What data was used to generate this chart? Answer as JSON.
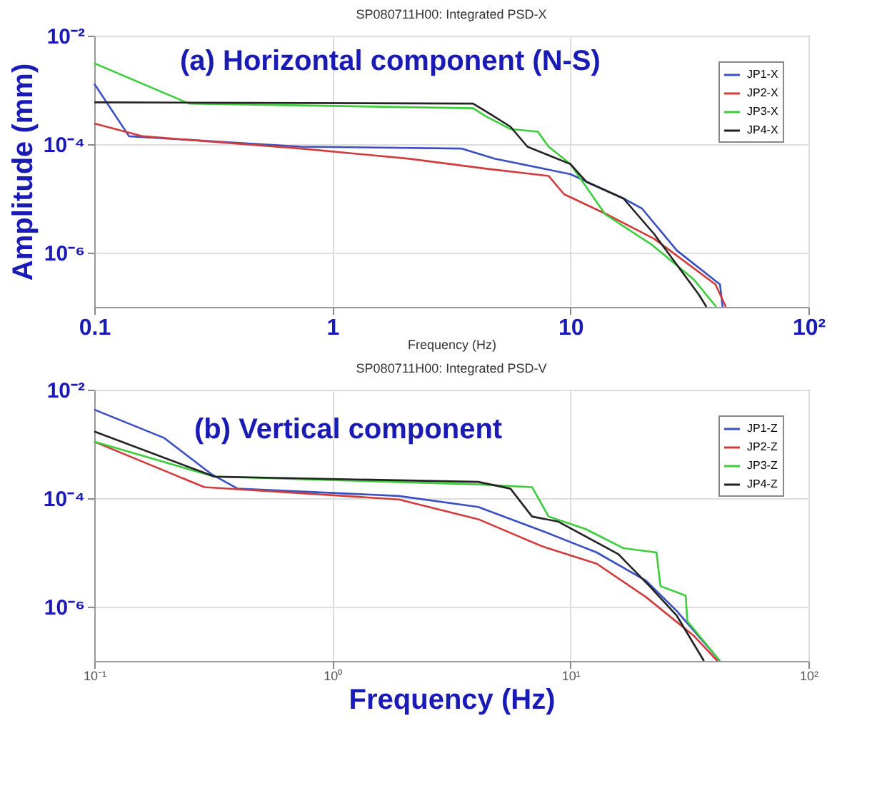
{
  "chart_data": [
    {
      "type": "line",
      "title": "SP080711H00: Integrated PSD-X",
      "xlabel": "Frequency (Hz)",
      "ylabel": "Amplitude (mm)",
      "annotations": [
        "(a) Horizontal component (N-S)"
      ],
      "log": "xy",
      "grid": true,
      "legend": "top right",
      "xlim": [
        0.1,
        100
      ],
      "ylim": [
        1e-07,
        0.01
      ],
      "xticks": [
        0.1,
        1,
        10,
        {
          "value": 100,
          "label": "10²"
        }
      ],
      "yticks": [
        {
          "value": 0.01,
          "label": "10⁻²"
        },
        {
          "value": 0.0001,
          "label": "10⁻⁴"
        },
        {
          "value": 1e-06,
          "label": "10⁻⁶"
        }
      ],
      "series": [
        {
          "name": "JP1-X",
          "color": "#3a4fc0",
          "x": [
            0.1,
            0.14,
            0.74,
            3.5,
            4.8,
            10,
            16.7,
            20,
            28,
            42.5,
            43.6
          ],
          "values": [
            0.0013,
            0.00014,
            9e-05,
            8.3e-05,
            5.4e-05,
            2.8e-05,
            1e-05,
            6.5e-06,
            1.1e-06,
            2.6e-07,
            1e-07
          ]
        },
        {
          "name": "JP2-X",
          "color": "#d03c3c",
          "x": [
            0.1,
            0.16,
            0.74,
            2.1,
            4.5,
            8.1,
            9.4,
            14.2,
            22.5,
            40.7,
            45
          ],
          "values": [
            0.00024,
            0.00014,
            8.3e-05,
            5.4e-05,
            3.5e-05,
            2.6e-05,
            1.2e-05,
            5.1e-06,
            1.8e-06,
            2.6e-07,
            1e-07
          ]
        },
        {
          "name": "JP3-X",
          "color": "#3ccc3c",
          "x": [
            0.1,
            0.25,
            3.9,
            4.4,
            5.6,
            7.3,
            8.1,
            10,
            14,
            22,
            33,
            41
          ],
          "values": [
            0.0031,
            0.00056,
            0.00046,
            0.00033,
            0.00019,
            0.00017,
            9e-05,
            4.3e-05,
            5.1e-06,
            1.4e-06,
            3.2e-07,
            1e-07
          ]
        },
        {
          "name": "JP4-X",
          "color": "#222222",
          "x": [
            0.1,
            3.9,
            4.6,
            5.6,
            6.6,
            10,
            11.7,
            16.7,
            22.5,
            34.6,
            37.3
          ],
          "values": [
            0.00059,
            0.00056,
            0.00036,
            0.00021,
            9e-05,
            4.3e-05,
            2e-05,
            1e-05,
            2.2e-06,
            1.7e-07,
            1e-07
          ]
        }
      ]
    },
    {
      "type": "line",
      "title": "SP080711H00: Integrated PSD-V",
      "xlabel": "Frequency (Hz)",
      "annotations": [
        "(b) Vertical component"
      ],
      "log": "xy",
      "grid": true,
      "legend": "top right",
      "xlim": [
        0.1,
        100
      ],
      "ylim": [
        1e-07,
        0.01
      ],
      "xticks": [
        {
          "value": 0.1,
          "label": "10⁻¹"
        },
        {
          "value": 1,
          "label": "10⁰"
        },
        {
          "value": 10,
          "label": "10¹"
        },
        {
          "value": 100,
          "label": "10²"
        }
      ],
      "yticks": [
        {
          "value": 0.01,
          "label": "10⁻²"
        },
        {
          "value": 0.0001,
          "label": "10⁻⁴"
        },
        {
          "value": 1e-06,
          "label": "10⁻⁶"
        }
      ],
      "series": [
        {
          "name": "JP1-Z",
          "color": "#3a4fc0",
          "x": [
            0.1,
            0.196,
            0.31,
            0.4,
            1.9,
            4.1,
            7.6,
            12.9,
            20.8,
            28,
            42.5
          ],
          "values": [
            0.0043,
            0.0013,
            0.00028,
            0.00015,
            0.00011,
            6.9e-05,
            2.5e-05,
            1e-05,
            3e-06,
            8.3e-07,
            1e-07
          ]
        },
        {
          "name": "JP2-Z",
          "color": "#d03c3c",
          "x": [
            0.1,
            0.29,
            1.9,
            4.1,
            7.6,
            12.9,
            20.8,
            33,
            41.5
          ],
          "values": [
            0.0011,
            0.00016,
            9.5e-05,
            4.1e-05,
            1.3e-05,
            6.2e-06,
            1.5e-06,
            2.9e-07,
            1e-07
          ]
        },
        {
          "name": "JP3-Z",
          "color": "#3ccc3c",
          "x": [
            0.1,
            0.32,
            4.1,
            6.9,
            8.1,
            11.6,
            16.7,
            23,
            23.9,
            30.5,
            31,
            42.5
          ],
          "values": [
            0.0011,
            0.00025,
            0.00018,
            0.00016,
            4.6e-05,
            2.7e-05,
            1.2e-05,
            1e-05,
            2.4e-06,
            1.6e-06,
            5.4e-07,
            1e-07
          ]
        },
        {
          "name": "JP4-Z",
          "color": "#222222",
          "x": [
            0.1,
            0.32,
            4.1,
            5.6,
            6.9,
            8.9,
            15.9,
            21.5,
            28,
            36.4
          ],
          "values": [
            0.0017,
            0.00025,
            0.0002,
            0.00015,
            4.6e-05,
            3.7e-05,
            9.3e-06,
            2.4e-06,
            6.8e-07,
            1e-07
          ]
        }
      ]
    }
  ]
}
